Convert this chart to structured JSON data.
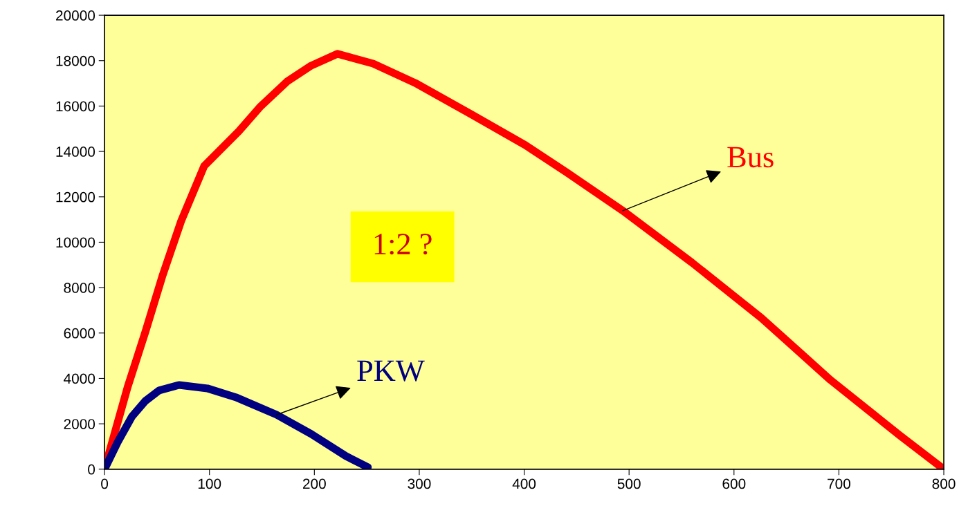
{
  "chart_data": {
    "type": "line",
    "x": [
      0,
      22,
      39,
      55,
      73,
      95,
      128,
      148,
      174,
      197,
      222,
      256,
      296,
      349,
      401,
      441,
      494,
      560,
      626,
      692,
      758,
      800
    ],
    "series": [
      {
        "name": "Bus",
        "color": "#ff0000",
        "values": [
          0,
          3620,
          6060,
          8490,
          10930,
          13360,
          14890,
          15950,
          17080,
          17780,
          18300,
          17870,
          17020,
          15650,
          14280,
          13060,
          11390,
          9100,
          6670,
          3930,
          1490,
          0
        ]
      },
      {
        "name": "PKW",
        "color": "#000080",
        "x": [
          0,
          12.5,
          26,
          39,
          52,
          71,
          98,
          125,
          164,
          197,
          230,
          251
        ],
        "values": [
          0,
          1190,
          2310,
          3010,
          3470,
          3710,
          3560,
          3170,
          2400,
          1550,
          580,
          90
        ]
      }
    ],
    "annotations": [
      "1:2 ?"
    ],
    "xlim": [
      0,
      800
    ],
    "xticks": [
      0,
      100,
      200,
      300,
      400,
      500,
      600,
      700,
      800
    ],
    "ylim": [
      0,
      20000
    ],
    "yticks": [
      0,
      2000,
      4000,
      6000,
      8000,
      10000,
      12000,
      14000,
      16000,
      18000,
      20000
    ],
    "grid": false,
    "legend": false,
    "marker": "none",
    "line_style": "solid"
  }
}
